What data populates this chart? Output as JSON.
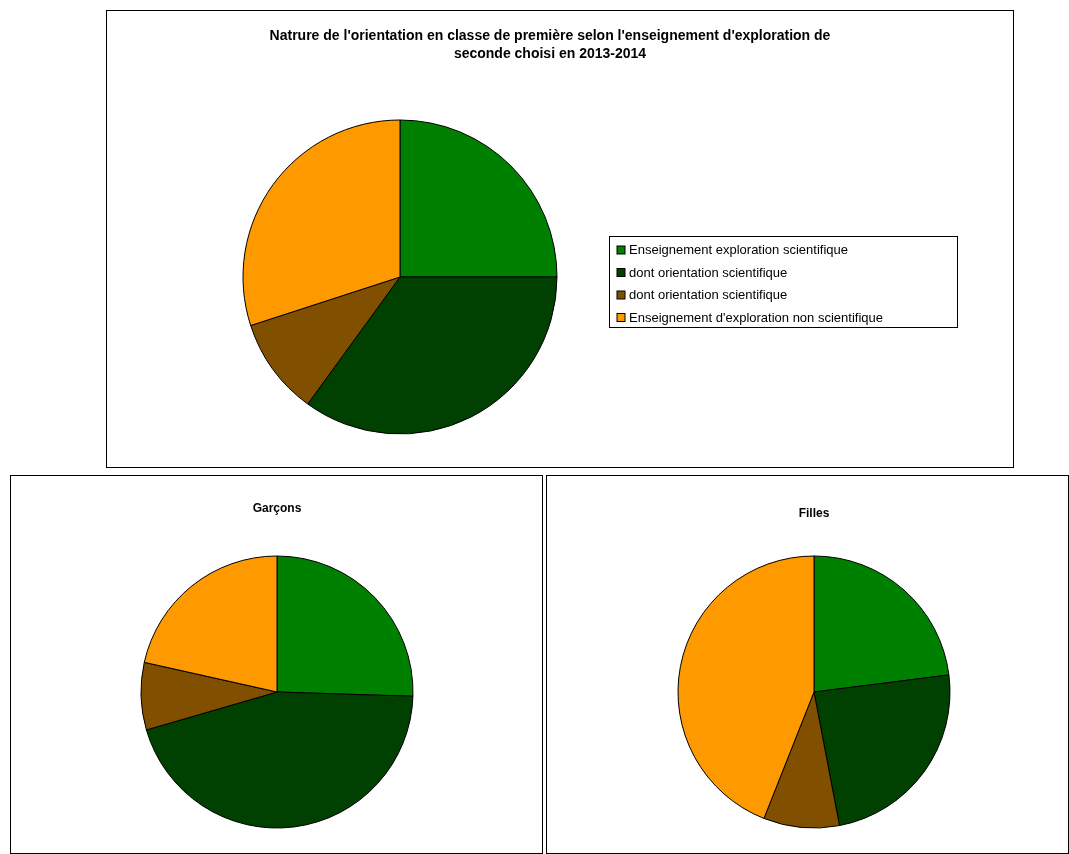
{
  "chart_data": [
    {
      "type": "pie",
      "title": "Natrure de l'orientation en classe de première selon l'enseignement d'exploration de seconde choisi en 2013-2014",
      "categories": [
        "Enseignement exploration scientifique",
        "dont orientation scientifique",
        "dont orientation scientifique",
        "Enseignement d'exploration non scientifique"
      ],
      "values": [
        25,
        35,
        10,
        30
      ],
      "colors": [
        "#008000",
        "#004000",
        "#805000",
        "#ff9900"
      ],
      "legend": "right"
    },
    {
      "type": "pie",
      "title": "Garçons",
      "categories": [
        null,
        null,
        null,
        null
      ],
      "values": [
        25.5,
        45,
        8,
        21.5
      ],
      "colors": [
        "#008000",
        "#004000",
        "#805000",
        "#ff9900"
      ]
    },
    {
      "type": "pie",
      "title": "Filles",
      "categories": [
        null,
        null,
        null,
        null
      ],
      "values": [
        23,
        24,
        9,
        44
      ],
      "colors": [
        "#008000",
        "#004000",
        "#805000",
        "#ff9900"
      ]
    }
  ]
}
